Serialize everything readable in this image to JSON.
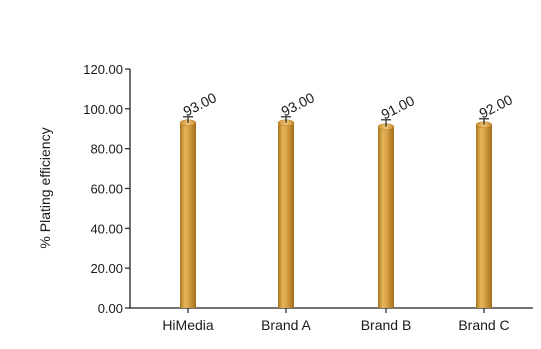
{
  "chart_data": {
    "type": "bar",
    "categories": [
      "HiMedia",
      "Brand A",
      "Brand B",
      "Brand C"
    ],
    "values": [
      93.0,
      93.0,
      91.0,
      92.0
    ],
    "error": [
      3.0,
      3.0,
      3.5,
      3.0
    ],
    "data_labels": [
      "93.00",
      "93.00",
      "91.00",
      "92.00"
    ],
    "title": "",
    "xlabel": "",
    "ylabel": "% Plating efficiency",
    "ylim": [
      0,
      120
    ],
    "yticks": [
      0,
      20,
      40,
      60,
      80,
      100,
      120
    ],
    "ytick_labels": [
      "0.00",
      "20.00",
      "40.00",
      "60.00",
      "80.00",
      "100.00",
      "120.00"
    ],
    "grid": false,
    "legend": "none",
    "bar_color": "#D4A03C"
  }
}
